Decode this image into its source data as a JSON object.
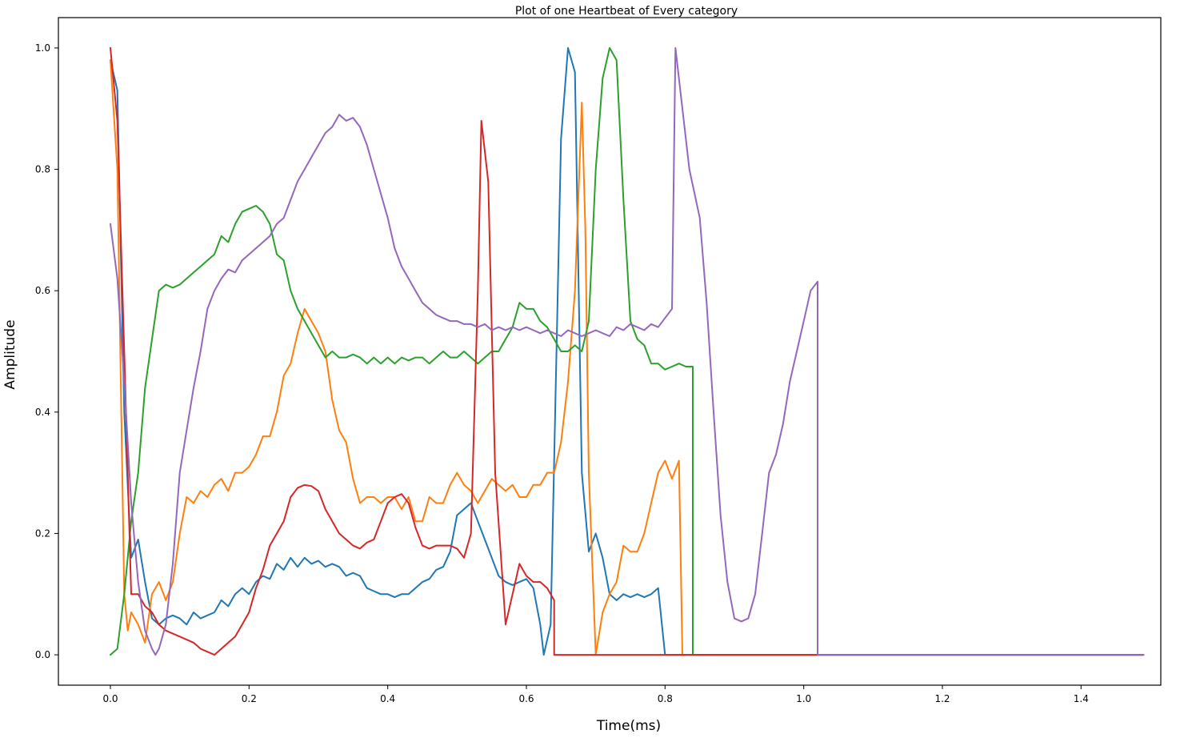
{
  "chart_data": {
    "type": "line",
    "title": "Plot of one Heartbeat of Every category",
    "xlabel": "Time(ms)",
    "ylabel": "Amplitude",
    "xlim": [
      -0.075,
      1.515
    ],
    "ylim": [
      -0.05,
      1.05
    ],
    "xticks": [
      0.0,
      0.2,
      0.4,
      0.6,
      0.8,
      1.0,
      1.2,
      1.4
    ],
    "xtick_labels": [
      "0.0",
      "0.2",
      "0.4",
      "0.6",
      "0.8",
      "1.0",
      "1.2",
      "1.4"
    ],
    "yticks": [
      0.0,
      0.2,
      0.4,
      0.6,
      0.8,
      1.0
    ],
    "ytick_labels": [
      "0.0",
      "0.2",
      "0.4",
      "0.6",
      "0.8",
      "1.0"
    ],
    "grid": false,
    "legend": false,
    "series": [
      {
        "color": "#1f77b4",
        "x": [
          0.0,
          0.01,
          0.02,
          0.03,
          0.04,
          0.05,
          0.06,
          0.07,
          0.08,
          0.09,
          0.1,
          0.11,
          0.12,
          0.13,
          0.14,
          0.15,
          0.16,
          0.17,
          0.18,
          0.19,
          0.2,
          0.21,
          0.22,
          0.23,
          0.24,
          0.25,
          0.26,
          0.27,
          0.28,
          0.29,
          0.3,
          0.31,
          0.32,
          0.33,
          0.34,
          0.35,
          0.36,
          0.37,
          0.38,
          0.39,
          0.4,
          0.41,
          0.42,
          0.43,
          0.44,
          0.45,
          0.46,
          0.47,
          0.48,
          0.49,
          0.5,
          0.51,
          0.52,
          0.53,
          0.54,
          0.55,
          0.56,
          0.57,
          0.58,
          0.59,
          0.6,
          0.61,
          0.62,
          0.625,
          0.635,
          0.65,
          0.66,
          0.67,
          0.68,
          0.69,
          0.7,
          0.71,
          0.72,
          0.73,
          0.74,
          0.75,
          0.76,
          0.77,
          0.78,
          0.79,
          0.8,
          0.8,
          1.49
        ],
        "y": [
          0.98,
          0.93,
          0.4,
          0.16,
          0.19,
          0.12,
          0.06,
          0.05,
          0.06,
          0.065,
          0.06,
          0.05,
          0.07,
          0.06,
          0.065,
          0.07,
          0.09,
          0.08,
          0.1,
          0.11,
          0.1,
          0.12,
          0.13,
          0.125,
          0.15,
          0.14,
          0.16,
          0.145,
          0.16,
          0.15,
          0.155,
          0.145,
          0.15,
          0.145,
          0.13,
          0.135,
          0.13,
          0.11,
          0.105,
          0.1,
          0.1,
          0.095,
          0.1,
          0.1,
          0.11,
          0.12,
          0.125,
          0.14,
          0.145,
          0.17,
          0.23,
          0.24,
          0.25,
          0.22,
          0.19,
          0.16,
          0.13,
          0.12,
          0.115,
          0.12,
          0.125,
          0.11,
          0.05,
          0.0,
          0.05,
          0.85,
          1.0,
          0.96,
          0.3,
          0.17,
          0.2,
          0.16,
          0.1,
          0.09,
          0.1,
          0.095,
          0.1,
          0.095,
          0.1,
          0.11,
          0.0,
          0.0,
          0.0
        ]
      },
      {
        "color": "#ff7f0e",
        "x": [
          0.0,
          0.01,
          0.02,
          0.025,
          0.03,
          0.04,
          0.05,
          0.06,
          0.07,
          0.08,
          0.09,
          0.1,
          0.11,
          0.12,
          0.13,
          0.14,
          0.15,
          0.16,
          0.17,
          0.18,
          0.19,
          0.2,
          0.21,
          0.22,
          0.23,
          0.24,
          0.25,
          0.26,
          0.27,
          0.28,
          0.29,
          0.3,
          0.31,
          0.32,
          0.33,
          0.34,
          0.35,
          0.36,
          0.37,
          0.38,
          0.39,
          0.4,
          0.41,
          0.42,
          0.43,
          0.44,
          0.45,
          0.46,
          0.47,
          0.48,
          0.49,
          0.5,
          0.51,
          0.52,
          0.53,
          0.54,
          0.55,
          0.56,
          0.57,
          0.58,
          0.59,
          0.6,
          0.61,
          0.62,
          0.63,
          0.64,
          0.65,
          0.66,
          0.67,
          0.68,
          0.685,
          0.69,
          0.7,
          0.71,
          0.72,
          0.73,
          0.74,
          0.75,
          0.76,
          0.77,
          0.78,
          0.79,
          0.8,
          0.81,
          0.82,
          0.825,
          0.825,
          1.49
        ],
        "y": [
          0.98,
          0.8,
          0.1,
          0.04,
          0.07,
          0.05,
          0.02,
          0.1,
          0.12,
          0.09,
          0.12,
          0.2,
          0.26,
          0.25,
          0.27,
          0.26,
          0.28,
          0.29,
          0.27,
          0.3,
          0.3,
          0.31,
          0.33,
          0.36,
          0.36,
          0.4,
          0.46,
          0.48,
          0.53,
          0.57,
          0.55,
          0.53,
          0.5,
          0.42,
          0.37,
          0.35,
          0.29,
          0.25,
          0.26,
          0.26,
          0.25,
          0.26,
          0.26,
          0.24,
          0.26,
          0.22,
          0.22,
          0.26,
          0.25,
          0.25,
          0.28,
          0.3,
          0.28,
          0.27,
          0.25,
          0.27,
          0.29,
          0.28,
          0.27,
          0.28,
          0.26,
          0.26,
          0.28,
          0.28,
          0.3,
          0.3,
          0.35,
          0.45,
          0.6,
          0.91,
          0.7,
          0.3,
          0.0,
          0.07,
          0.1,
          0.12,
          0.18,
          0.17,
          0.17,
          0.2,
          0.25,
          0.3,
          0.32,
          0.29,
          0.32,
          0.0,
          0.0,
          0.0
        ]
      },
      {
        "color": "#2ca02c",
        "x": [
          0.0,
          0.01,
          0.02,
          0.03,
          0.04,
          0.05,
          0.06,
          0.07,
          0.08,
          0.09,
          0.1,
          0.11,
          0.12,
          0.13,
          0.14,
          0.15,
          0.16,
          0.17,
          0.18,
          0.19,
          0.2,
          0.21,
          0.22,
          0.23,
          0.24,
          0.25,
          0.26,
          0.27,
          0.28,
          0.29,
          0.3,
          0.31,
          0.32,
          0.33,
          0.34,
          0.35,
          0.36,
          0.37,
          0.38,
          0.39,
          0.4,
          0.41,
          0.42,
          0.43,
          0.44,
          0.45,
          0.46,
          0.47,
          0.48,
          0.49,
          0.5,
          0.51,
          0.52,
          0.53,
          0.54,
          0.55,
          0.56,
          0.57,
          0.58,
          0.59,
          0.6,
          0.61,
          0.62,
          0.63,
          0.64,
          0.65,
          0.66,
          0.67,
          0.68,
          0.69,
          0.7,
          0.71,
          0.72,
          0.73,
          0.74,
          0.75,
          0.76,
          0.77,
          0.78,
          0.79,
          0.8,
          0.81,
          0.82,
          0.83,
          0.84,
          0.84,
          1.49
        ],
        "y": [
          0.0,
          0.01,
          0.1,
          0.22,
          0.3,
          0.44,
          0.52,
          0.6,
          0.61,
          0.605,
          0.61,
          0.62,
          0.63,
          0.64,
          0.65,
          0.66,
          0.69,
          0.68,
          0.71,
          0.73,
          0.735,
          0.74,
          0.73,
          0.71,
          0.66,
          0.65,
          0.6,
          0.57,
          0.55,
          0.53,
          0.51,
          0.49,
          0.5,
          0.49,
          0.49,
          0.495,
          0.49,
          0.48,
          0.49,
          0.48,
          0.49,
          0.48,
          0.49,
          0.485,
          0.49,
          0.49,
          0.48,
          0.49,
          0.5,
          0.49,
          0.49,
          0.5,
          0.49,
          0.48,
          0.49,
          0.5,
          0.5,
          0.52,
          0.54,
          0.58,
          0.57,
          0.57,
          0.55,
          0.54,
          0.52,
          0.5,
          0.5,
          0.51,
          0.5,
          0.55,
          0.8,
          0.95,
          1.0,
          0.98,
          0.75,
          0.55,
          0.52,
          0.51,
          0.48,
          0.48,
          0.47,
          0.475,
          0.48,
          0.475,
          0.475,
          0.0,
          0.0
        ]
      },
      {
        "color": "#d62728",
        "x": [
          0.0,
          0.01,
          0.02,
          0.03,
          0.04,
          0.05,
          0.06,
          0.07,
          0.08,
          0.09,
          0.1,
          0.11,
          0.12,
          0.13,
          0.14,
          0.15,
          0.16,
          0.17,
          0.18,
          0.19,
          0.2,
          0.21,
          0.22,
          0.23,
          0.24,
          0.25,
          0.26,
          0.27,
          0.28,
          0.29,
          0.3,
          0.31,
          0.32,
          0.33,
          0.34,
          0.35,
          0.36,
          0.37,
          0.38,
          0.39,
          0.4,
          0.41,
          0.42,
          0.43,
          0.44,
          0.45,
          0.46,
          0.47,
          0.48,
          0.49,
          0.5,
          0.51,
          0.52,
          0.53,
          0.535,
          0.545,
          0.555,
          0.57,
          0.58,
          0.59,
          0.6,
          0.61,
          0.62,
          0.63,
          0.64,
          0.64,
          1.49
        ],
        "y": [
          1.0,
          0.88,
          0.5,
          0.1,
          0.1,
          0.08,
          0.07,
          0.05,
          0.04,
          0.035,
          0.03,
          0.025,
          0.02,
          0.01,
          0.005,
          0.0,
          0.01,
          0.02,
          0.03,
          0.05,
          0.07,
          0.11,
          0.14,
          0.18,
          0.2,
          0.22,
          0.26,
          0.275,
          0.28,
          0.278,
          0.27,
          0.24,
          0.22,
          0.2,
          0.19,
          0.18,
          0.175,
          0.185,
          0.19,
          0.22,
          0.25,
          0.26,
          0.265,
          0.25,
          0.21,
          0.18,
          0.175,
          0.18,
          0.18,
          0.18,
          0.175,
          0.16,
          0.2,
          0.6,
          0.88,
          0.78,
          0.3,
          0.05,
          0.1,
          0.15,
          0.13,
          0.12,
          0.12,
          0.11,
          0.09,
          0.0,
          0.0
        ]
      },
      {
        "color": "#9467bd",
        "x": [
          0.0,
          0.01,
          0.02,
          0.03,
          0.04,
          0.05,
          0.06,
          0.065,
          0.07,
          0.08,
          0.09,
          0.1,
          0.11,
          0.12,
          0.13,
          0.14,
          0.15,
          0.16,
          0.17,
          0.18,
          0.19,
          0.2,
          0.21,
          0.22,
          0.23,
          0.24,
          0.25,
          0.26,
          0.27,
          0.28,
          0.29,
          0.3,
          0.31,
          0.32,
          0.33,
          0.34,
          0.35,
          0.36,
          0.37,
          0.38,
          0.39,
          0.4,
          0.41,
          0.42,
          0.43,
          0.44,
          0.45,
          0.46,
          0.47,
          0.48,
          0.49,
          0.5,
          0.51,
          0.52,
          0.53,
          0.54,
          0.55,
          0.56,
          0.57,
          0.58,
          0.59,
          0.6,
          0.61,
          0.62,
          0.63,
          0.64,
          0.65,
          0.66,
          0.67,
          0.68,
          0.69,
          0.7,
          0.71,
          0.72,
          0.73,
          0.74,
          0.75,
          0.76,
          0.77,
          0.78,
          0.79,
          0.8,
          0.81,
          0.815,
          0.825,
          0.835,
          0.85,
          0.86,
          0.87,
          0.88,
          0.89,
          0.9,
          0.91,
          0.92,
          0.93,
          0.94,
          0.95,
          0.96,
          0.97,
          0.98,
          0.99,
          1.0,
          1.01,
          1.02,
          1.02,
          1.49
        ],
        "y": [
          0.71,
          0.62,
          0.45,
          0.25,
          0.12,
          0.04,
          0.01,
          0.0,
          0.01,
          0.05,
          0.15,
          0.3,
          0.37,
          0.44,
          0.5,
          0.57,
          0.6,
          0.62,
          0.635,
          0.63,
          0.65,
          0.66,
          0.67,
          0.68,
          0.69,
          0.71,
          0.72,
          0.75,
          0.78,
          0.8,
          0.82,
          0.84,
          0.86,
          0.87,
          0.89,
          0.88,
          0.885,
          0.87,
          0.84,
          0.8,
          0.76,
          0.72,
          0.67,
          0.64,
          0.62,
          0.6,
          0.58,
          0.57,
          0.56,
          0.555,
          0.55,
          0.55,
          0.545,
          0.545,
          0.54,
          0.545,
          0.535,
          0.54,
          0.535,
          0.54,
          0.535,
          0.54,
          0.535,
          0.53,
          0.535,
          0.53,
          0.525,
          0.535,
          0.53,
          0.525,
          0.53,
          0.535,
          0.53,
          0.525,
          0.54,
          0.535,
          0.545,
          0.54,
          0.535,
          0.545,
          0.54,
          0.555,
          0.57,
          1.0,
          0.9,
          0.8,
          0.72,
          0.58,
          0.4,
          0.23,
          0.12,
          0.06,
          0.055,
          0.06,
          0.1,
          0.2,
          0.3,
          0.33,
          0.38,
          0.45,
          0.5,
          0.55,
          0.6,
          0.615,
          0.0,
          0.0
        ]
      }
    ]
  }
}
